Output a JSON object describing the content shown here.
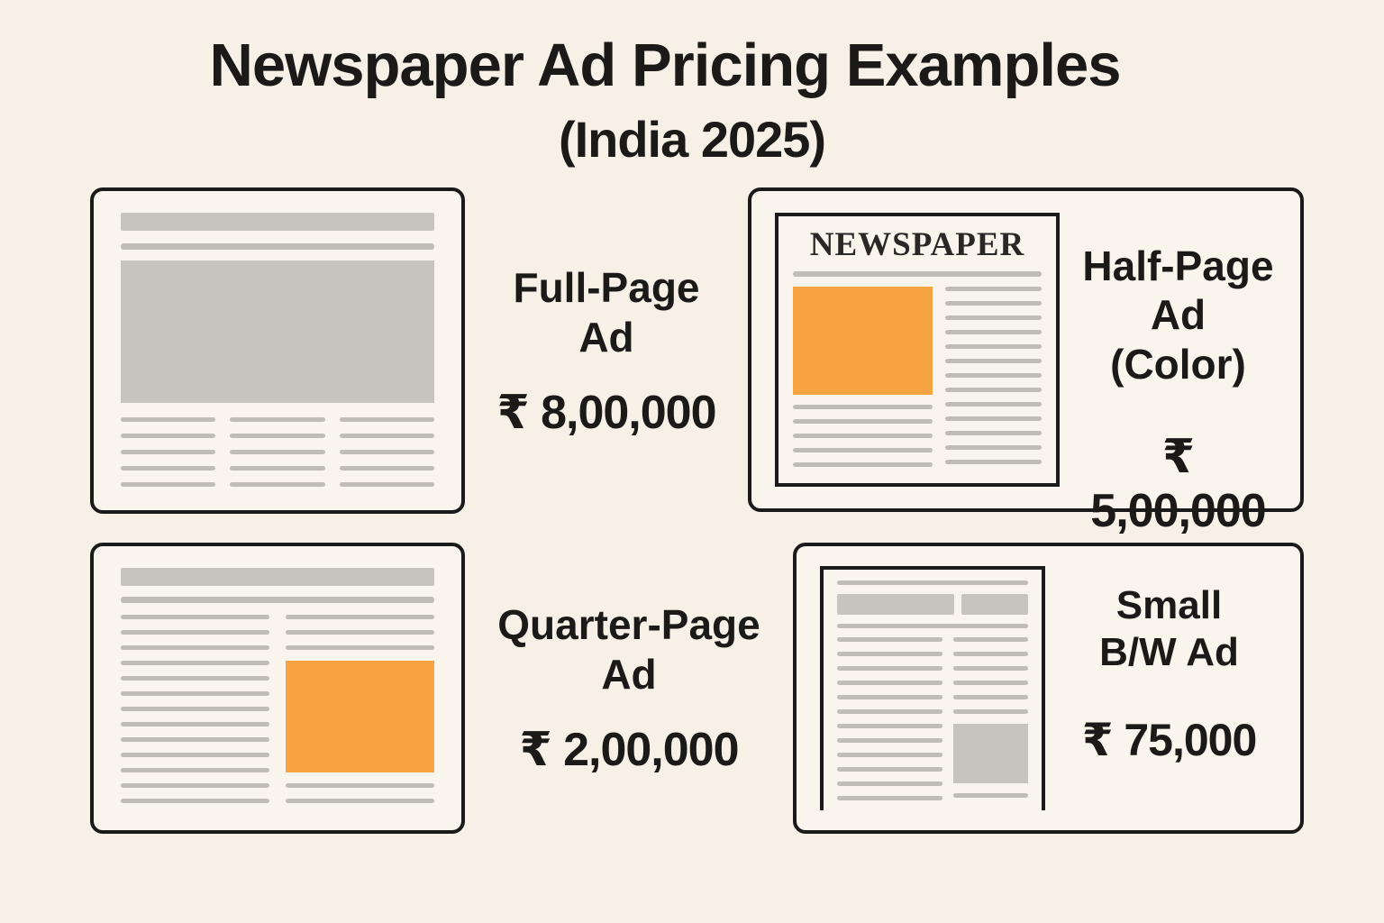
{
  "header": {
    "title": "Newspaper Ad Pricing Examples",
    "subtitle": "(India 2025)"
  },
  "cards": {
    "full_page": {
      "label_line1": "Full-Page",
      "label_line2": "Ad",
      "price": "₹ 8,00,000"
    },
    "half_page": {
      "label_line1": "Half-Page",
      "label_line2": "Ad (Color)",
      "price": "₹ 5,00,000",
      "masthead": "NEWSPAPER"
    },
    "quarter_page": {
      "label_line1": "Quarter-Page",
      "label_line2": "Ad",
      "price": "₹ 2,00,000"
    },
    "small_bw": {
      "label_line1": "Small",
      "label_line2": "B/W Ad",
      "price": "₹ 75,000"
    }
  },
  "colors": {
    "background": "#F7F0E7",
    "card_bg": "#F9F4EC",
    "ink": "#1C1A18",
    "frame": "#1A1A1A",
    "block": "#C7C4BD",
    "line": "#C0BDB6",
    "orange": "#F5A441"
  }
}
